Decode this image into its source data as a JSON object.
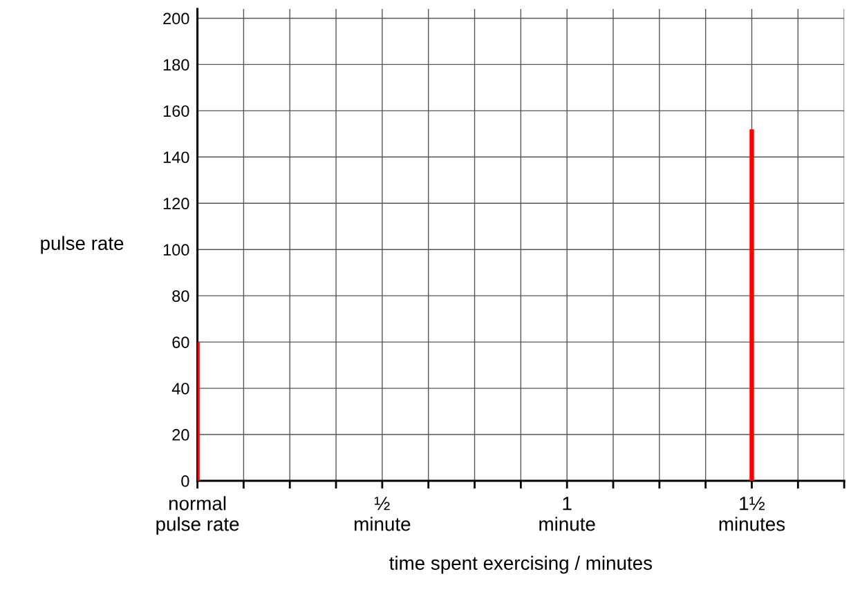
{
  "chart_data": {
    "type": "bar",
    "xlabel": "time spent exercising / minutes",
    "ylabel": "pulse rate",
    "x": [
      0,
      1.5
    ],
    "values": [
      60,
      152
    ],
    "color": "#ff0000",
    "xlim": [
      0,
      1.75
    ],
    "ylim": [
      0,
      204
    ],
    "xticks": [
      {
        "value": 0,
        "label": "normal\npulse rate"
      },
      {
        "value": 0.125,
        "label": null
      },
      {
        "value": 0.25,
        "label": null
      },
      {
        "value": 0.375,
        "label": null
      },
      {
        "value": 0.5,
        "label": "½\nminute"
      },
      {
        "value": 0.625,
        "label": null
      },
      {
        "value": 0.75,
        "label": null
      },
      {
        "value": 0.875,
        "label": null
      },
      {
        "value": 1,
        "label": "1\nminute"
      },
      {
        "value": 1.125,
        "label": null
      },
      {
        "value": 1.25,
        "label": null
      },
      {
        "value": 1.375,
        "label": null
      },
      {
        "value": 1.5,
        "label": "1½\nminutes"
      },
      {
        "value": 1.625,
        "label": null
      },
      {
        "value": 1.75,
        "label": null
      }
    ],
    "yticks": [
      0,
      20,
      40,
      60,
      80,
      100,
      120,
      140,
      160,
      180,
      200
    ],
    "grid": true
  }
}
